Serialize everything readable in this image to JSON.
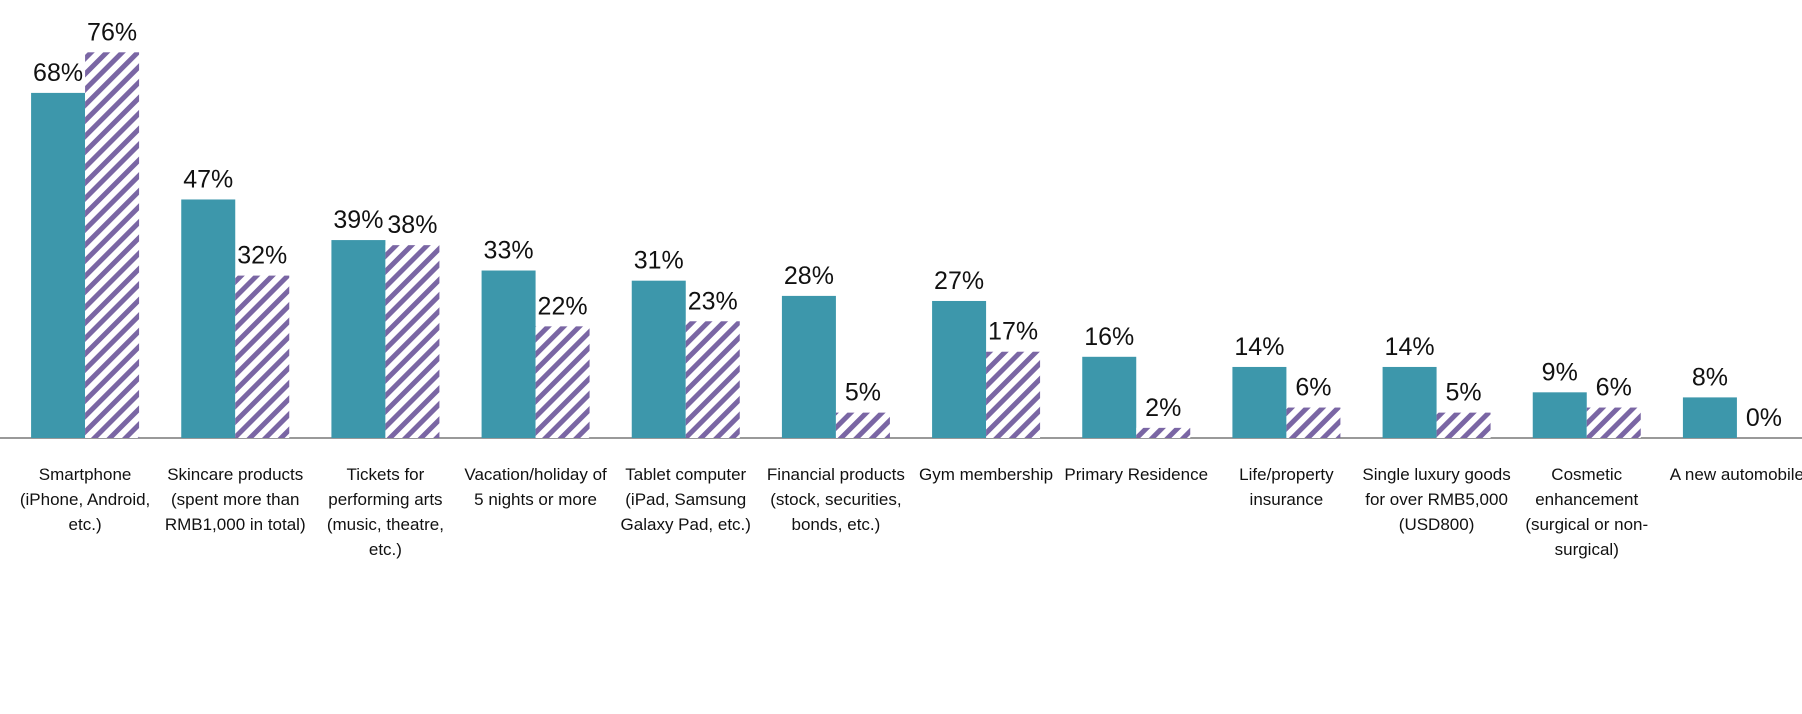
{
  "chart_data": {
    "type": "bar",
    "categories": [
      "Smartphone (iPhone, Android, etc.)",
      "Skincare products (spent more than RMB1,000 in total)",
      "Tickets for performing arts (music, theatre, etc.)",
      "Vacation/holiday of 5 nights or more",
      "Tablet computer (iPad, Samsung Galaxy Pad, etc.)",
      "Financial products (stock, securities, bonds, etc.)",
      "Gym membership",
      "Primary Residence",
      "Life/property insurance",
      "Single luxury goods for over RMB5,000 (USD800)",
      "Cosmetic enhancement (surgical or non-surgical)",
      "A new automobile"
    ],
    "series": [
      {
        "color": "#3d97ab",
        "pattern": "solid",
        "values": [
          68,
          47,
          39,
          33,
          31,
          28,
          27,
          16,
          14,
          14,
          9,
          8
        ],
        "value_labels": [
          "68%",
          "47%",
          "39%",
          "33%",
          "31%",
          "28%",
          "27%",
          "16%",
          "14%",
          "14%",
          "9%",
          "8%"
        ]
      },
      {
        "color": "#7a66a4",
        "pattern": "hatch",
        "values": [
          76,
          32,
          38,
          22,
          23,
          5,
          17,
          2,
          6,
          5,
          6,
          0
        ],
        "value_labels": [
          "76%",
          "32%",
          "38%",
          "22%",
          "23%",
          "5%",
          "17%",
          "2%",
          "6%",
          "5%",
          "6%",
          "0%"
        ]
      }
    ],
    "ylim": [
      0,
      80
    ]
  }
}
